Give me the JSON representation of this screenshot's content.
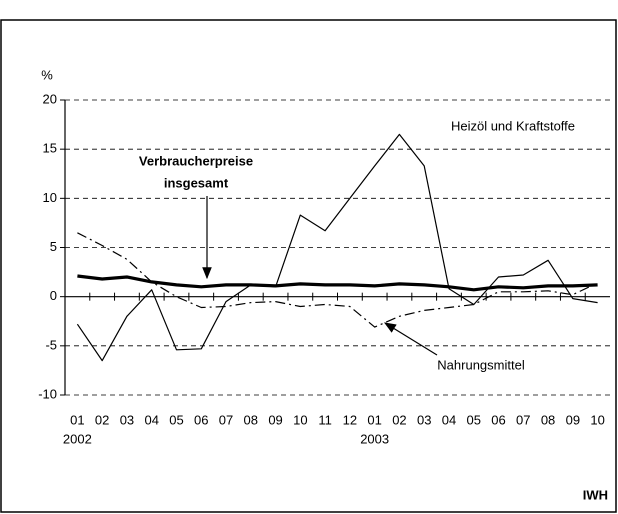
{
  "chart_data": {
    "type": "line",
    "y_unit_label": "%",
    "categories": [
      "01",
      "02",
      "03",
      "04",
      "05",
      "06",
      "07",
      "08",
      "09",
      "10",
      "11",
      "12",
      "01",
      "02",
      "03",
      "04",
      "05",
      "06",
      "07",
      "08",
      "09",
      "10"
    ],
    "year_categories": [
      "2002",
      null,
      null,
      null,
      null,
      null,
      null,
      null,
      null,
      null,
      null,
      null,
      "2003",
      null,
      null,
      null,
      null,
      null,
      null,
      null,
      null,
      null
    ],
    "series": [
      {
        "name": "Heizöl und Kraftstoffe",
        "color": "#000000",
        "width": 1.2,
        "dash": "none",
        "values": [
          -2.8,
          -6.5,
          -2.0,
          0.7,
          -5.4,
          -5.3,
          -0.5,
          1.2,
          1.0,
          8.3,
          6.7,
          10.0,
          13.3,
          16.5,
          13.3,
          0.8,
          -0.8,
          2.0,
          2.2,
          3.7,
          -0.2,
          -0.6
        ]
      },
      {
        "name": [
          "Verbraucherpreise",
          "insgesamt"
        ],
        "color": "#000000",
        "width": 3.2,
        "dash": "none",
        "values": [
          2.1,
          1.8,
          2.0,
          1.5,
          1.2,
          1.0,
          1.2,
          1.2,
          1.1,
          1.3,
          1.2,
          1.2,
          1.1,
          1.3,
          1.2,
          1.0,
          0.7,
          1.0,
          0.9,
          1.1,
          1.1,
          1.2
        ]
      },
      {
        "name": "Nahrungsmittel",
        "color": "#000000",
        "width": 1.2,
        "dash": "10 4 2 4",
        "values": [
          6.5,
          5.2,
          3.8,
          1.5,
          0.0,
          -1.1,
          -1.0,
          -0.6,
          -0.5,
          -1.0,
          -0.8,
          -1.0,
          -3.1,
          -2.0,
          -1.4,
          -1.1,
          -0.8,
          0.5,
          0.5,
          0.6,
          0.2,
          1.4
        ]
      }
    ],
    "ylim": [
      -10,
      20
    ],
    "yticks": [
      -10,
      -5,
      0,
      5,
      10,
      15,
      20
    ],
    "grid": true,
    "source": "IWH"
  }
}
